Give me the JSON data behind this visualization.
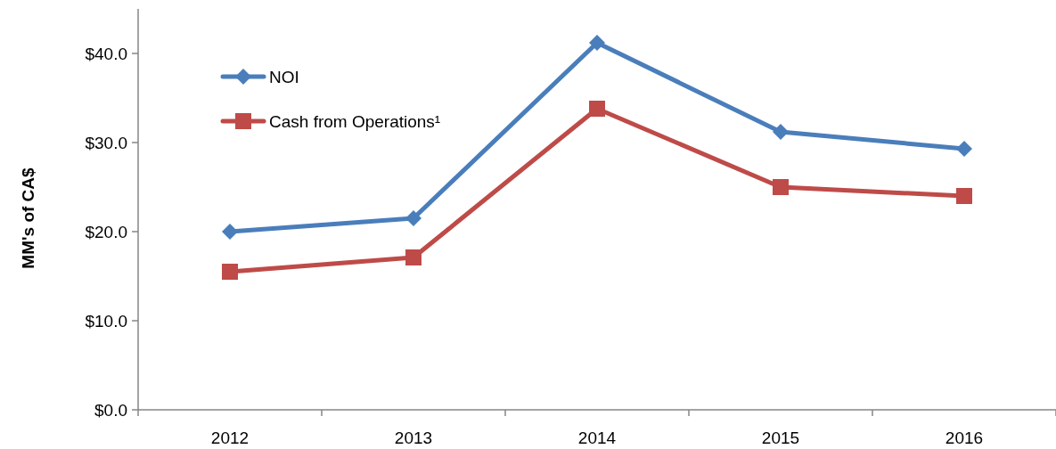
{
  "chart_data": {
    "type": "line",
    "ylabel": "MM's of CA$",
    "categories": [
      "2012",
      "2013",
      "2014",
      "2015",
      "2016"
    ],
    "series": [
      {
        "name": "NOI",
        "color": "#4a7ebb",
        "marker": "diamond",
        "values": [
          20.0,
          21.5,
          41.2,
          31.2,
          29.3
        ]
      },
      {
        "name": "Cash from Operations¹",
        "color": "#be4b48",
        "marker": "square",
        "values": [
          15.5,
          17.1,
          33.8,
          25.0,
          24.0
        ]
      }
    ],
    "ylim": [
      0,
      45
    ],
    "yticks": [
      {
        "value": 0,
        "label": "$0.0"
      },
      {
        "value": 10,
        "label": "$10.0"
      },
      {
        "value": 20,
        "label": "$20.0"
      },
      {
        "value": 30,
        "label": "$30.0"
      },
      {
        "value": 40,
        "label": "$40.0"
      }
    ],
    "grid": false,
    "legend": "top left"
  }
}
